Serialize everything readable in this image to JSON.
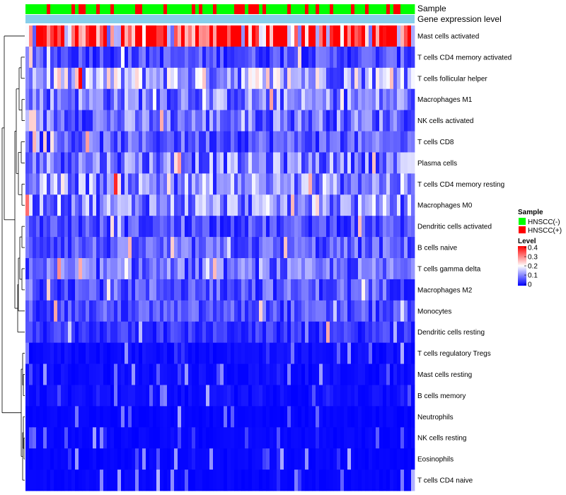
{
  "chart_data": {
    "type": "heatmap",
    "title": "",
    "annotation_labels": [
      "Sample",
      "Gene expression level"
    ],
    "rows": [
      {
        "name": "Mast cells activated",
        "mean": 0.34
      },
      {
        "name": "T cells CD4 memory activated",
        "mean": 0.06
      },
      {
        "name": "T cells follicular helper",
        "mean": 0.14
      },
      {
        "name": "Macrophages M1",
        "mean": 0.1
      },
      {
        "name": "NK cells activated",
        "mean": 0.09
      },
      {
        "name": "T cells CD8",
        "mean": 0.07
      },
      {
        "name": "Plasma cells",
        "mean": 0.1
      },
      {
        "name": "T cells CD4 memory resting",
        "mean": 0.11
      },
      {
        "name": "Macrophages M0",
        "mean": 0.11
      },
      {
        "name": "Dendritic cells activated",
        "mean": 0.06
      },
      {
        "name": "B cells naive",
        "mean": 0.07
      },
      {
        "name": "T cells gamma delta",
        "mean": 0.08
      },
      {
        "name": "Macrophages M2",
        "mean": 0.07
      },
      {
        "name": "Monocytes",
        "mean": 0.06
      },
      {
        "name": "Dendritic cells resting",
        "mean": 0.04
      },
      {
        "name": "T cells regulatory  Tregs",
        "mean": 0.02
      },
      {
        "name": "Mast cells resting",
        "mean": 0.02
      },
      {
        "name": "B cells memory",
        "mean": 0.02
      },
      {
        "name": "Neutrophils",
        "mean": 0.01
      },
      {
        "name": "NK cells resting",
        "mean": 0.01
      },
      {
        "name": "Eosinophils",
        "mean": 0.01
      },
      {
        "name": "T cells CD4 naive",
        "mean": 0.01
      }
    ],
    "n_samples": 110,
    "sample_groups": {
      "values": [
        "HNSCC(-)",
        "HNSCC(+)"
      ],
      "colors": [
        "#00FF00",
        "#FF0000"
      ],
      "positive_fraction": 0.3
    },
    "gene_expression_color": "#87CEEB",
    "color_scale": {
      "min": 0,
      "max": 0.4,
      "ticks": [
        "0.4",
        "0.3",
        "0.2",
        "0.1",
        "0"
      ],
      "colors": [
        "#0000FF",
        "#FFFFFF",
        "#FF0000"
      ]
    }
  },
  "legend": {
    "sample_title": "Sample",
    "sample_items": [
      "HNSCC(-)",
      "HNSCC(+)"
    ],
    "level_title": "Level"
  }
}
